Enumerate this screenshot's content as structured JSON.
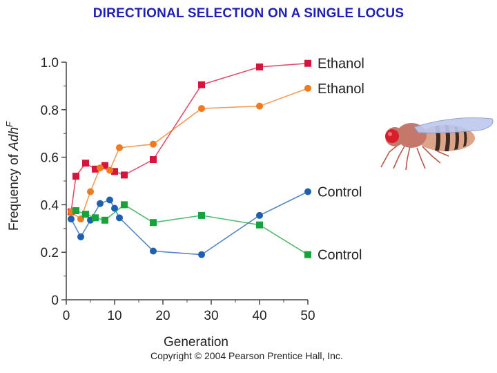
{
  "header": {
    "title": "DIRECTIONAL SELECTION ON A SINGLE LOCUS"
  },
  "footer": {
    "copyright": "Copyright © 2004 Pearson Prentice Hall, Inc."
  },
  "colors": {
    "ethanol_red": "#d4163c",
    "ethanol_orange": "#f07a1e",
    "control_blue": "#1f5fb0",
    "control_green": "#17a33b",
    "title_blue": "#1f1fb8"
  },
  "illustration": {
    "icon": "fruit-fly-icon"
  },
  "chart_data": {
    "type": "line",
    "title": "",
    "xlabel": "Generation",
    "ylabel": "Frequency of AdhF",
    "ylabel_parts": {
      "prefix": "Frequency of ",
      "italic": "Adh",
      "superscript": "F"
    },
    "xlim": [
      0,
      50
    ],
    "ylim": [
      0,
      1.0
    ],
    "x_ticks": [
      "0",
      "10",
      "20",
      "30",
      "40",
      "50"
    ],
    "y_ticks": [
      "0",
      "0.2",
      "0.4",
      "0.6",
      "0.8",
      "1.0"
    ],
    "grid": false,
    "legend": "labels at right end of each line",
    "series": [
      {
        "name": "Ethanol",
        "marker": "square",
        "color": "#d4163c",
        "points": [
          [
            1,
            0.37
          ],
          [
            2,
            0.52
          ],
          [
            4,
            0.575
          ],
          [
            6,
            0.55
          ],
          [
            8,
            0.565
          ],
          [
            10,
            0.54
          ],
          [
            12,
            0.525
          ],
          [
            18,
            0.59
          ],
          [
            28,
            0.905
          ],
          [
            40,
            0.98
          ],
          [
            50,
            0.995
          ]
        ]
      },
      {
        "name": "Ethanol",
        "marker": "circle",
        "color": "#f07a1e",
        "points": [
          [
            1,
            0.37
          ],
          [
            3,
            0.34
          ],
          [
            5,
            0.455
          ],
          [
            7,
            0.555
          ],
          [
            9,
            0.545
          ],
          [
            11,
            0.64
          ],
          [
            18,
            0.655
          ],
          [
            28,
            0.805
          ],
          [
            40,
            0.815
          ],
          [
            50,
            0.89
          ]
        ]
      },
      {
        "name": "Control",
        "marker": "circle",
        "color": "#1f5fb0",
        "points": [
          [
            1,
            0.34
          ],
          [
            3,
            0.265
          ],
          [
            5,
            0.335
          ],
          [
            7,
            0.405
          ],
          [
            9,
            0.42
          ],
          [
            10,
            0.385
          ],
          [
            11,
            0.345
          ],
          [
            18,
            0.205
          ],
          [
            28,
            0.19
          ],
          [
            40,
            0.355
          ],
          [
            50,
            0.455
          ]
        ]
      },
      {
        "name": "Control",
        "marker": "square",
        "color": "#17a33b",
        "points": [
          [
            2,
            0.375
          ],
          [
            4,
            0.36
          ],
          [
            6,
            0.345
          ],
          [
            8,
            0.335
          ],
          [
            12,
            0.4
          ],
          [
            18,
            0.325
          ],
          [
            28,
            0.355
          ],
          [
            40,
            0.315
          ],
          [
            50,
            0.19
          ]
        ]
      }
    ]
  }
}
